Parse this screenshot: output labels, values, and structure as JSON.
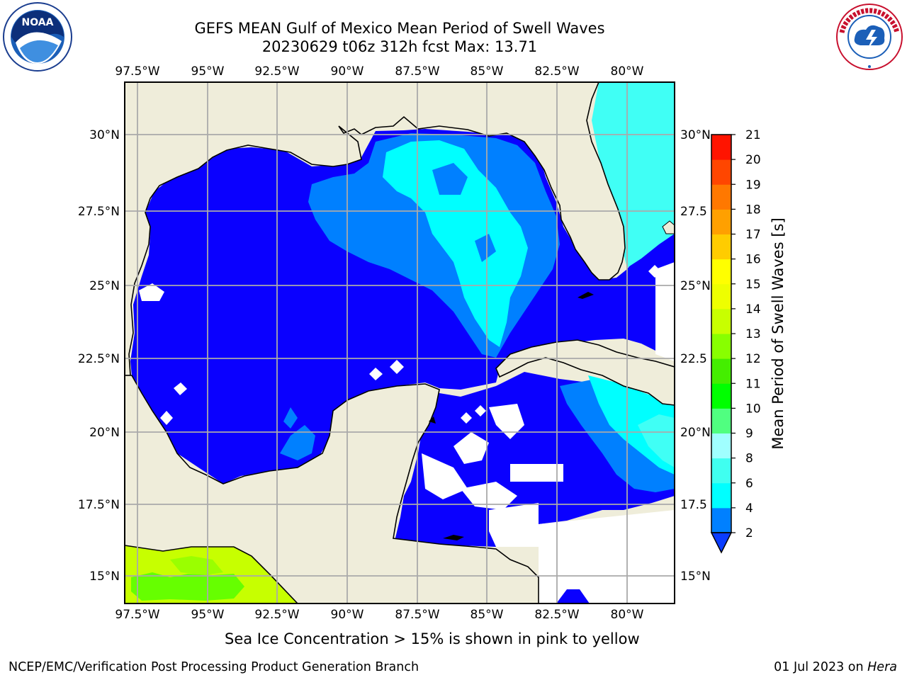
{
  "header": {
    "title_line1": "GEFS MEAN Gulf of Mexico Mean Period of Swell Waves",
    "title_line2": "20230629 t06z 312h fcst   Max: 13.71"
  },
  "logos": {
    "noaa_text": "NOAA",
    "noaa_ring_text": "NATIONAL OCEANIC AND ATMOSPHERIC ADMINISTRATION · U.S. DEPARTMENT OF COMMERCE",
    "nws_ring_text": "NATIONAL WEATHER SERVICE"
  },
  "map": {
    "lon_ticks": [
      "97.5°W",
      "95°W",
      "92.5°W",
      "90°W",
      "87.5°W",
      "85°W",
      "82.5°W",
      "80°W"
    ],
    "lat_ticks_left": [
      "30°N",
      "27.5°N",
      "25°N",
      "22.5°N",
      "20°N",
      "17.5°N",
      "15°N"
    ],
    "lat_ticks_right": [
      "30°N",
      "27.5",
      "25°N",
      "22.5",
      "20°N",
      "17.5",
      "15°N"
    ],
    "colors": {
      "land": "#efedda",
      "coast": "#000000",
      "grid": "#aaaaaa",
      "deep_blue": "#0a00ff",
      "mid_blue": "#0080ff",
      "cyan": "#00ffff",
      "light_cyan": "#40fff5",
      "yellow_green": "#c7ff00",
      "green": "#66ff00"
    }
  },
  "colorbar": {
    "label": "Mean Period of Swell Waves [s]",
    "ticks": [
      "2",
      "4",
      "6",
      "8",
      "9",
      "10",
      "11",
      "12",
      "13",
      "14",
      "15",
      "16",
      "17",
      "18",
      "19",
      "20",
      "21"
    ],
    "colors": [
      "#0a3cff",
      "#0080ff",
      "#00ffff",
      "#40fff0",
      "#a0ffff",
      "#50ff80",
      "#00ff00",
      "#44ee00",
      "#88ff00",
      "#c8ff00",
      "#eeff00",
      "#ffff00",
      "#ffcc00",
      "#ffa000",
      "#ff7800",
      "#ff4600",
      "#ff1400",
      "#ff0000"
    ]
  },
  "footer": {
    "note": "Sea Ice Concentration > 15% is shown in pink to yellow",
    "credit": "NCEP/EMC/Verification Post Processing Product Generation Branch",
    "date_prefix": "01 Jul 2023 on ",
    "date_host": "Hera"
  }
}
